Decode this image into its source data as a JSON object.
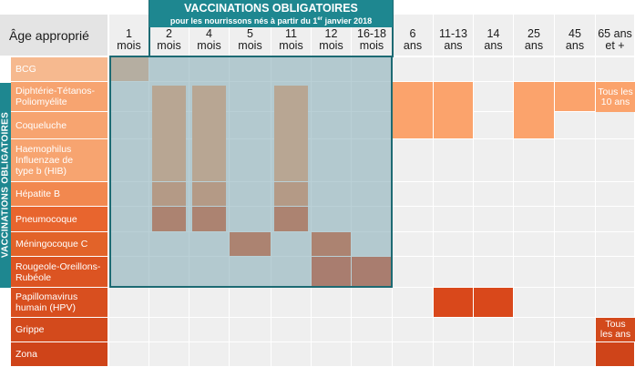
{
  "header": {
    "age_label": "Âge approprié",
    "mandatory_title": "VACCINATIONS OBLIGATOIRES",
    "mandatory_subtitle_before": "pour les nourrissons nés à partir du 1",
    "mandatory_subtitle_sup": "er",
    "mandatory_subtitle_after": " janvier 2018",
    "side_label": "VACCINATIONS OBLIGATOIRES"
  },
  "ages": [
    "1\nmois",
    "2\nmois",
    "4\nmois",
    "5\nmois",
    "11\nmois",
    "12\nmois",
    "16-18\nmois",
    "6\nans",
    "11-13\nans",
    "14\nans",
    "25\nans",
    "45\nans",
    "65 ans\net +"
  ],
  "vaccines": [
    {
      "name": "BCG",
      "color": "#f6b98f"
    },
    {
      "name": "Diphtérie-Tétanos-\nPoliomyélite",
      "color": "#f7a470"
    },
    {
      "name": "Coqueluche",
      "color": "#f7a470"
    },
    {
      "name": "Haemophilus\nInfluenzae de\ntype b (HIB)",
      "color": "#f7a470"
    },
    {
      "name": "Hépatite B",
      "color": "#f2884f"
    },
    {
      "name": "Pneumocoque",
      "color": "#e8652e"
    },
    {
      "name": "Méningocoque C",
      "color": "#e26329"
    },
    {
      "name": "Rougeole-Oreillons-\nRubéole",
      "color": "#dc5422"
    },
    {
      "name": "Papillomavirus\nhumain (HPV)",
      "color": "#d84f1f"
    },
    {
      "name": "Grippe",
      "color": "#d34a1c"
    },
    {
      "name": "Zona",
      "color": "#cf4419"
    }
  ],
  "marks": [
    {
      "vaccine": "BCG",
      "ages": [
        "1\nmois"
      ],
      "color": "#f3b48b"
    },
    {
      "vaccine": "Diphtérie-Tétanos-Poliomyélite",
      "ages": [
        "2\nmois",
        "4\nmois",
        "11\nmois",
        "6\nans",
        "11-13\nans",
        "25\nans",
        "45\nans",
        "65 ans\net +"
      ],
      "color": "#fba36c"
    },
    {
      "vaccine": "Coqueluche",
      "ages": [
        "2\nmois",
        "4\nmois",
        "11\nmois",
        "6\nans",
        "11-13\nans",
        "25\nans"
      ],
      "color": "#fba36c"
    },
    {
      "vaccine": "Haemophilus Influenzae de type b (HIB)",
      "ages": [
        "2\nmois",
        "4\nmois",
        "11\nmois"
      ],
      "color": "#fba36c"
    },
    {
      "vaccine": "Hépatite B",
      "ages": [
        "2\nmois",
        "4\nmois",
        "11\nmois"
      ],
      "color": "#f1874f"
    },
    {
      "vaccine": "Pneumocoque",
      "ages": [
        "2\nmois",
        "4\nmois",
        "11\nmois"
      ],
      "color": "#e1561f"
    },
    {
      "vaccine": "Méningocoque C",
      "ages": [
        "5\nmois",
        "12\nmois"
      ],
      "color": "#e1561f"
    },
    {
      "vaccine": "Rougeole-Oreillons-Rubéole",
      "ages": [
        "12\nmois",
        "16-18\nmois"
      ],
      "color": "#d9481b"
    },
    {
      "vaccine": "Papillomavirus humain (HPV)",
      "ages": [
        "11-13\nans",
        "14\nans"
      ],
      "color": "#d9481b"
    },
    {
      "vaccine": "Grippe",
      "ages": [
        "65 ans\net +"
      ],
      "color": "#d34a1c"
    },
    {
      "vaccine": "Zona",
      "ages": [
        "65 ans\net +"
      ],
      "color": "#cf4419"
    }
  ],
  "notes": {
    "dtp": "Tous les\n10 ans",
    "grippe": "Tous\nles ans"
  }
}
